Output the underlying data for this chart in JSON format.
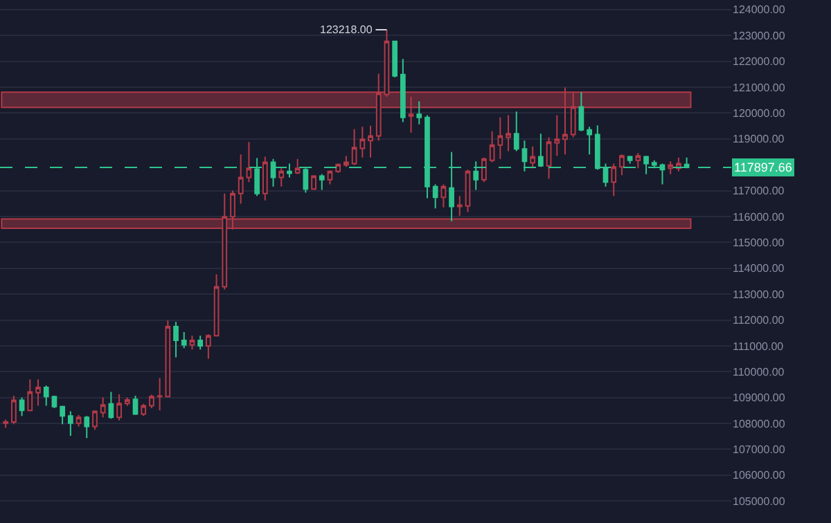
{
  "chart_data": {
    "type": "candlestick",
    "categories": [
      null,
      null,
      null,
      null,
      null,
      null,
      null,
      null,
      null,
      null,
      null,
      null,
      null,
      null,
      null,
      null,
      null,
      null,
      null,
      null,
      null,
      null,
      null,
      null,
      null,
      null,
      null,
      null,
      null,
      null,
      null,
      null,
      null,
      null,
      null,
      null,
      null,
      null,
      null,
      null,
      null,
      null,
      null,
      null,
      null,
      null,
      null,
      null,
      null,
      null,
      null,
      null,
      null,
      null,
      null,
      null,
      null,
      null,
      null,
      null,
      null,
      null,
      null,
      null,
      null,
      null,
      null,
      null,
      null,
      null,
      null,
      null,
      null,
      null,
      null,
      null,
      null,
      null,
      null,
      null,
      null,
      null,
      null,
      null,
      null
    ],
    "ohlc": [
      [
        108005,
        108147,
        107826,
        108058
      ],
      [
        108058,
        109074,
        107969,
        108896
      ],
      [
        108896,
        109003,
        108290,
        108504
      ],
      [
        108504,
        109698,
        108468,
        109217
      ],
      [
        109190,
        109698,
        108682,
        109395
      ],
      [
        109395,
        109466,
        108682,
        109039
      ],
      [
        109039,
        109074,
        108593,
        108647
      ],
      [
        108647,
        108682,
        107969,
        108290
      ],
      [
        108290,
        108468,
        107523,
        108005
      ],
      [
        108005,
        108326,
        107880,
        108237
      ],
      [
        108237,
        108290,
        107434,
        107880
      ],
      [
        107880,
        108504,
        107755,
        108468
      ],
      [
        108414,
        109003,
        108236,
        108718
      ],
      [
        108754,
        109217,
        108183,
        108237
      ],
      [
        108237,
        109128,
        108112,
        108771
      ],
      [
        108771,
        109003,
        108682,
        108914
      ],
      [
        108932,
        109074,
        108326,
        108361
      ],
      [
        108361,
        108754,
        108290,
        108682
      ],
      [
        108682,
        109110,
        108593,
        109039
      ],
      [
        109039,
        109752,
        108504,
        109060
      ],
      [
        109039,
        111981,
        109039,
        111749
      ],
      [
        111749,
        111927,
        110554,
        111214
      ],
      [
        111214,
        111535,
        110911,
        111036
      ],
      [
        111036,
        111392,
        110857,
        111214
      ],
      [
        111214,
        111392,
        110857,
        111000
      ],
      [
        111000,
        111446,
        110500,
        111392
      ],
      [
        111392,
        113764,
        111356,
        113282
      ],
      [
        113282,
        116885,
        113177,
        115994
      ],
      [
        115994,
        117000,
        115494,
        116885
      ],
      [
        116885,
        118401,
        116493,
        117509
      ],
      [
        117509,
        118882,
        117331,
        117866
      ],
      [
        117830,
        118258,
        116796,
        116885
      ],
      [
        116885,
        118312,
        116618,
        118098
      ],
      [
        118098,
        118223,
        117153,
        117510
      ],
      [
        117510,
        117866,
        117153,
        117742
      ],
      [
        117742,
        118045,
        117510,
        117670
      ],
      [
        117688,
        118223,
        117635,
        117866
      ],
      [
        117813,
        117866,
        116921,
        117064
      ],
      [
        117064,
        117599,
        117028,
        117563
      ],
      [
        117563,
        117634,
        117028,
        117420
      ],
      [
        117420,
        117777,
        117242,
        117741
      ],
      [
        117741,
        118045,
        117688,
        118009
      ],
      [
        117991,
        118348,
        117920,
        118098
      ],
      [
        118045,
        119382,
        117991,
        118669
      ],
      [
        118633,
        119471,
        118276,
        118990
      ],
      [
        118936,
        119507,
        118276,
        119114
      ],
      [
        119114,
        121521,
        118936,
        120773
      ],
      [
        120719,
        123218,
        120630,
        122770
      ],
      [
        122770,
        122770,
        121379,
        121432
      ],
      [
        121486,
        122092,
        119649,
        119828
      ],
      [
        119881,
        120630,
        119239,
        119952
      ],
      [
        119952,
        120452,
        119560,
        119828
      ],
      [
        119828,
        119917,
        116707,
        117153
      ],
      [
        117153,
        117242,
        116315,
        116743
      ],
      [
        116743,
        117242,
        116350,
        117153
      ],
      [
        117099,
        118490,
        115815,
        116386
      ],
      [
        116386,
        116796,
        116030,
        116440
      ],
      [
        116404,
        117812,
        116172,
        117741
      ],
      [
        117741,
        118134,
        117028,
        117420
      ],
      [
        117420,
        118276,
        117331,
        118223
      ],
      [
        118169,
        119292,
        118098,
        118758
      ],
      [
        118758,
        119827,
        118223,
        119114
      ],
      [
        119060,
        119916,
        118526,
        119203
      ],
      [
        119203,
        120059,
        118526,
        118615
      ],
      [
        118615,
        118936,
        117741,
        118133
      ],
      [
        118080,
        118704,
        117866,
        118312
      ],
      [
        118312,
        119203,
        117919,
        117955
      ],
      [
        117955,
        119060,
        117456,
        118882
      ],
      [
        118846,
        119916,
        118347,
        118989
      ],
      [
        118989,
        120986,
        118401,
        119168
      ],
      [
        119168,
        120808,
        119060,
        120237
      ],
      [
        120237,
        120808,
        119292,
        119346
      ],
      [
        119346,
        119471,
        118401,
        119168
      ],
      [
        119168,
        119524,
        117812,
        117866
      ],
      [
        117866,
        118044,
        117153,
        117331
      ],
      [
        117331,
        118044,
        116796,
        117919
      ],
      [
        117919,
        118401,
        117598,
        118347
      ],
      [
        118312,
        118347,
        118044,
        118169
      ],
      [
        118169,
        118455,
        117866,
        118347
      ],
      [
        118312,
        118347,
        117634,
        118044
      ],
      [
        118080,
        118169,
        117866,
        117991
      ],
      [
        117991,
        118044,
        117242,
        117812
      ],
      [
        117866,
        118133,
        117634,
        117991
      ],
      [
        117866,
        118276,
        117741,
        118044
      ],
      [
        118009,
        118276,
        117866,
        117898
      ]
    ],
    "colors": [
      "#b23a48",
      "#b23a48",
      "#2ec48e",
      "#b23a48",
      "#b23a48",
      "#2ec48e",
      "#2ec48e",
      "#2ec48e",
      "#2ec48e",
      "#b23a48",
      "#2ec48e",
      "#b23a48",
      "#b23a48",
      "#2ec48e",
      "#b23a48",
      "#b23a48",
      "#2ec48e",
      "#b23a48",
      "#b23a48",
      "#b23a48",
      "#b23a48",
      "#2ec48e",
      "#2ec48e",
      "#b23a48",
      "#2ec48e",
      "#b23a48",
      "#b23a48",
      "#b23a48",
      "#b23a48",
      "#b23a48",
      "#b23a48",
      "#2ec48e",
      "#b23a48",
      "#2ec48e",
      "#b23a48",
      "#2ec48e",
      "#b23a48",
      "#2ec48e",
      "#b23a48",
      "#2ec48e",
      "#b23a48",
      "#b23a48",
      "#b23a48",
      "#b23a48",
      "#b23a48",
      "#b23a48",
      "#b23a48",
      "#b23a48",
      "#2ec48e",
      "#2ec48e",
      "#b23a48",
      "#2ec48e",
      "#2ec48e",
      "#2ec48e",
      "#b23a48",
      "#2ec48e",
      "#b23a48",
      "#b23a48",
      "#2ec48e",
      "#b23a48",
      "#b23a48",
      "#b23a48",
      "#b23a48",
      "#2ec48e",
      "#2ec48e",
      "#b23a48",
      "#2ec48e",
      "#b23a48",
      "#b23a48",
      "#b23a48",
      "#b23a48",
      "#2ec48e",
      "#2ec48e",
      "#2ec48e",
      "#2ec48e",
      "#b23a48",
      "#b23a48",
      "#2ec48e",
      "#b23a48",
      "#2ec48e",
      "#2ec48e",
      "#2ec48e",
      "#b23a48",
      "#b23a48",
      "#2ec48e"
    ],
    "ylim": [
      104150,
      124370
    ],
    "yticks": [
      {
        "value": 105000,
        "label": "105000.00"
      },
      {
        "value": 106000,
        "label": "106000.00"
      },
      {
        "value": 107000,
        "label": "107000.00"
      },
      {
        "value": 108000,
        "label": "108000.00"
      },
      {
        "value": 109000,
        "label": "109000.00"
      },
      {
        "value": 110000,
        "label": "110000.00"
      },
      {
        "value": 111000,
        "label": "111000.00"
      },
      {
        "value": 112000,
        "label": "112000.00"
      },
      {
        "value": 113000,
        "label": "113000.00"
      },
      {
        "value": 114000,
        "label": "114000.00"
      },
      {
        "value": 115000,
        "label": "115000.00"
      },
      {
        "value": 116000,
        "label": "116000.00"
      },
      {
        "value": 117000,
        "label": "117000.00"
      },
      {
        "value": 119000,
        "label": "119000.00"
      },
      {
        "value": 120000,
        "label": "120000.00"
      },
      {
        "value": 121000,
        "label": "121000.00"
      },
      {
        "value": 122000,
        "label": "122000.00"
      },
      {
        "value": 123000,
        "label": "123000.00"
      },
      {
        "value": 124000,
        "label": "124000.00"
      }
    ],
    "tick_labels": "y",
    "grid": "y",
    "ref_lines": [
      {
        "axis": "y",
        "value": 117897.66,
        "label": "117897.66",
        "color": "#2ec48e",
        "line_style": "dashed"
      }
    ],
    "bands": [
      {
        "axis": "y",
        "from": 120218,
        "to": 120806,
        "color": "#b23a48"
      },
      {
        "axis": "y",
        "from": 115547,
        "to": 115906,
        "color": "#b23a48"
      }
    ],
    "annotations": [
      "123218.00"
    ]
  }
}
